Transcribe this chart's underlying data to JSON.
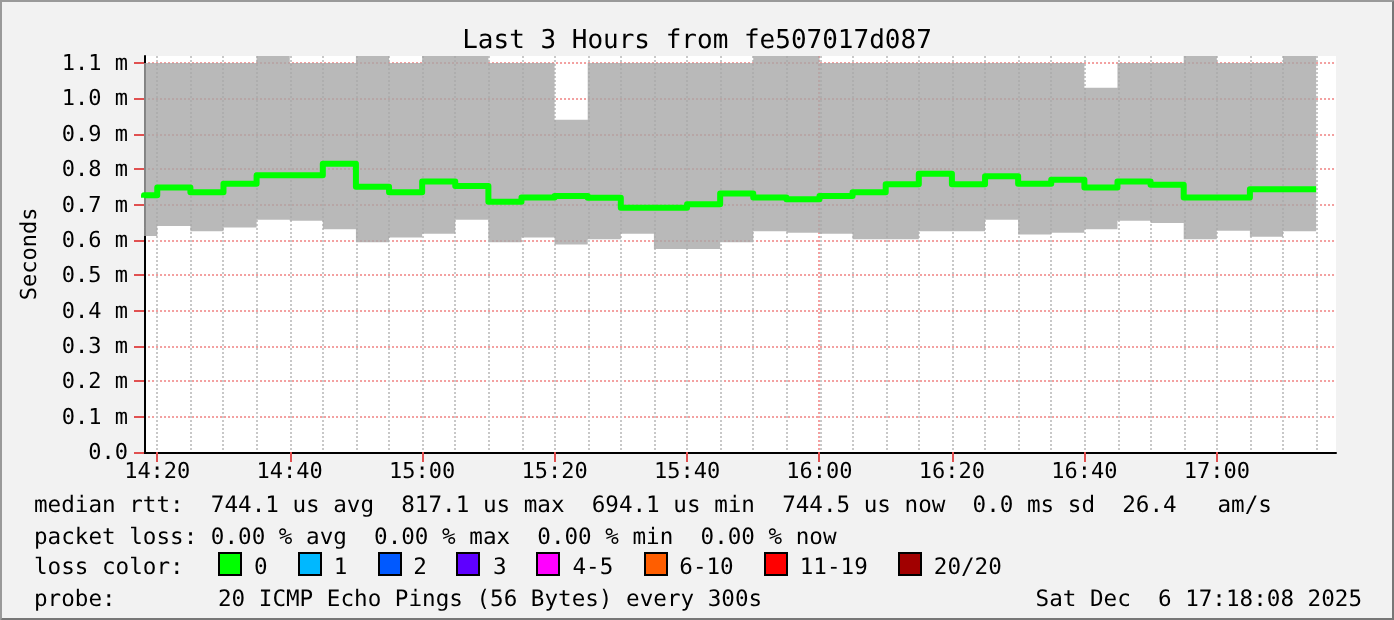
{
  "chart_data": {
    "type": "step",
    "title": "Last 3 Hours from fe507017d087",
    "ylabel": "Seconds",
    "x": [
      14.3,
      14.3333,
      14.4167,
      14.5,
      14.5833,
      14.6667,
      14.75,
      14.8333,
      14.9167,
      15.0,
      15.0833,
      15.1667,
      15.25,
      15.3333,
      15.4167,
      15.5,
      15.5833,
      15.6667,
      15.75,
      15.8333,
      15.9167,
      16.0,
      16.0833,
      16.1667,
      16.25,
      16.3333,
      16.4167,
      16.5,
      16.5833,
      16.6667,
      16.75,
      16.8333,
      16.9167,
      17.0,
      17.0833,
      17.1667,
      17.25
    ],
    "series": [
      {
        "color": "#00ff00",
        "values": [
          0.719,
          0.726,
          0.748,
          0.735,
          0.759,
          0.783,
          0.783,
          0.815,
          0.75,
          0.735,
          0.765,
          0.752,
          0.708,
          0.72,
          0.724,
          0.719,
          0.691,
          0.691,
          0.701,
          0.731,
          0.72,
          0.715,
          0.724,
          0.735,
          0.757,
          0.787,
          0.757,
          0.78,
          0.759,
          0.77,
          0.748,
          0.765,
          0.756,
          0.72,
          0.72,
          0.743,
          0.743
        ],
        "lower": [
          0.611,
          0.639,
          0.624,
          0.635,
          0.657,
          0.654,
          0.63,
          0.593,
          0.607,
          0.617,
          0.657,
          0.593,
          0.607,
          0.587,
          0.602,
          0.617,
          0.574,
          0.574,
          0.593,
          0.624,
          0.62,
          0.617,
          0.602,
          0.602,
          0.624,
          0.624,
          0.657,
          0.615,
          0.62,
          0.63,
          0.654,
          0.648,
          0.602,
          0.626,
          0.609,
          0.624,
          0.626
        ],
        "upper": [
          1.1,
          1.1,
          1.1,
          1.1,
          1.12,
          1.1,
          1.1,
          1.12,
          1.1,
          1.12,
          1.12,
          1.1,
          1.1,
          0.94,
          1.1,
          1.1,
          1.1,
          1.1,
          1.1,
          1.12,
          1.12,
          1.1,
          1.1,
          1.1,
          1.1,
          1.1,
          1.1,
          1.1,
          1.1,
          1.03,
          1.1,
          1.1,
          1.12,
          1.1,
          1.1,
          1.12,
          1.12
        ]
      }
    ],
    "xlim": [
      14.3,
      17.3
    ],
    "xticks": [
      {
        "value": 14.3333,
        "label": "14:20"
      },
      {
        "value": 14.6667,
        "label": "14:40"
      },
      {
        "value": 15.0,
        "label": "15:00"
      },
      {
        "value": 15.3333,
        "label": "15:20"
      },
      {
        "value": 15.6667,
        "label": "15:40"
      },
      {
        "value": 16.0,
        "label": "16:00"
      },
      {
        "value": 16.3333,
        "label": "16:20"
      },
      {
        "value": 16.6667,
        "label": "16:40"
      },
      {
        "value": 17.0,
        "label": "17:00"
      }
    ],
    "ylim": [
      0,
      1.12
    ],
    "yticks": [
      {
        "value": 0,
        "label": "0.0"
      },
      {
        "value": 0.1,
        "label": "0.1 m"
      },
      {
        "value": 0.2,
        "label": "0.2 m"
      },
      {
        "value": 0.3,
        "label": "0.3 m"
      },
      {
        "value": 0.4,
        "label": "0.4 m"
      },
      {
        "value": 0.5,
        "label": "0.5 m"
      },
      {
        "value": 0.6,
        "label": "0.6 m"
      },
      {
        "value": 0.7,
        "label": "0.7 m"
      },
      {
        "value": 0.8,
        "label": "0.8 m"
      },
      {
        "value": 0.9,
        "label": "0.9 m"
      },
      {
        "value": 1.0,
        "label": "1.0 m"
      },
      {
        "value": 1.1,
        "label": "1.1 m"
      }
    ],
    "grid": true,
    "marker": "none",
    "annotations": [
      "median rtt:  744.1 us avg  817.1 us max  694.1 us min  744.5 us now  0.0 ms sd  26.4   am/s",
      "packet loss: 0.00 % avg  0.00 % max  0.00 % min  0.00 % now",
      "loss color:",
      "0",
      "1",
      "2",
      "3",
      "4-5",
      "6-10",
      "11-19",
      "20/20",
      "probe:",
      "20 ICMP Echo Pings (56 Bytes) every 300s",
      "Sat Dec  6 17:18:08 2025"
    ]
  }
}
